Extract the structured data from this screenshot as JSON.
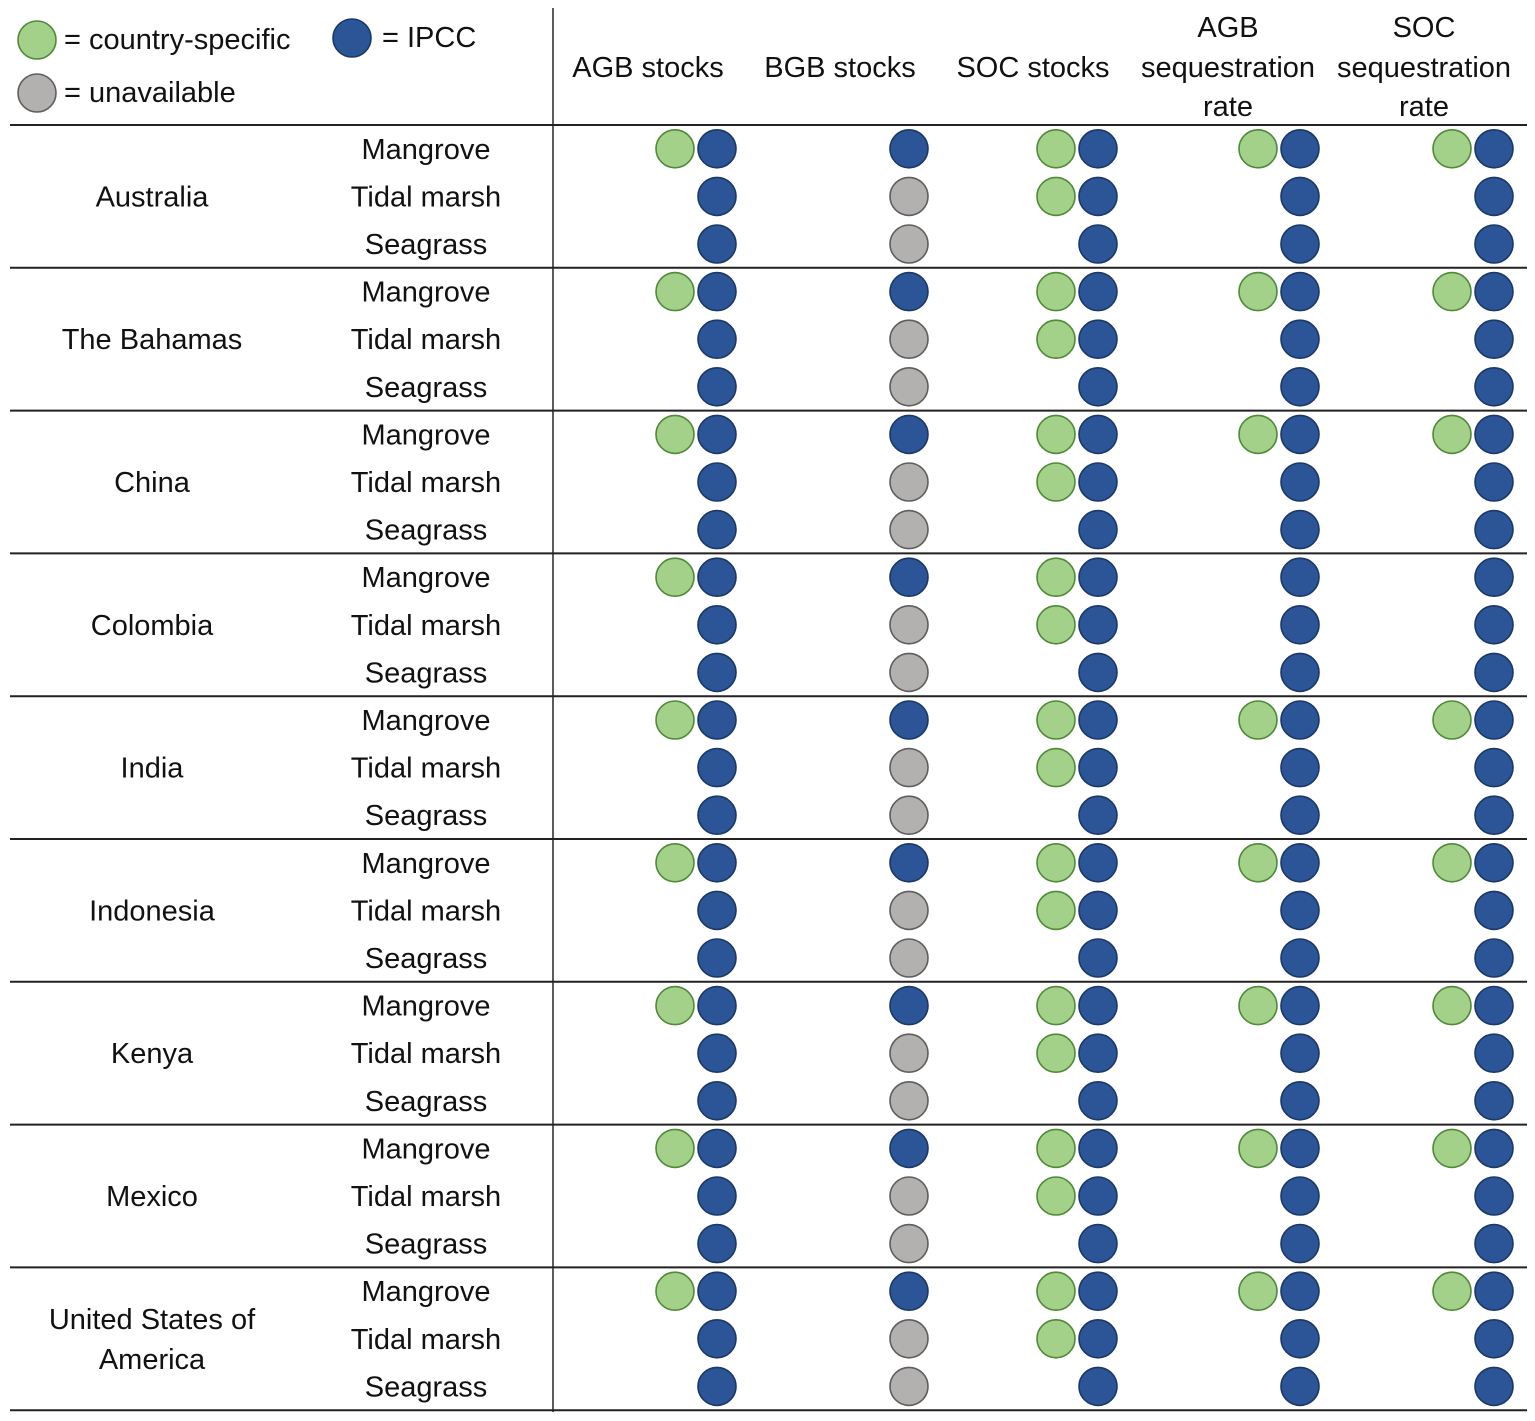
{
  "chart_data": {
    "type": "table",
    "legend": [
      {
        "key": "country",
        "label": "= country-specific",
        "color": "#a3d18a",
        "stroke": "#4f8a36"
      },
      {
        "key": "ipcc",
        "label": "= IPCC",
        "color": "#2b5597",
        "stroke": "#1b3866"
      },
      {
        "key": "unavailable",
        "label": "= unavailable",
        "color": "#b3b0b0",
        "stroke": "#5f5d5d"
      }
    ],
    "columns": [
      {
        "id": "agb_stocks",
        "lines": [
          "AGB stocks"
        ]
      },
      {
        "id": "bgb_stocks",
        "lines": [
          "BGB stocks"
        ]
      },
      {
        "id": "soc_stocks",
        "lines": [
          "SOC stocks"
        ]
      },
      {
        "id": "agb_seq",
        "lines": [
          "AGB",
          "sequestration",
          "rate"
        ]
      },
      {
        "id": "soc_seq",
        "lines": [
          "SOC",
          "sequestration",
          "rate"
        ]
      }
    ],
    "countries": [
      {
        "name": [
          "Australia"
        ],
        "rows": [
          {
            "ecosystem": "Mangrove",
            "values": [
              [
                "country",
                "ipcc"
              ],
              [
                "ipcc"
              ],
              [
                "country",
                "ipcc"
              ],
              [
                "country",
                "ipcc"
              ],
              [
                "country",
                "ipcc"
              ]
            ]
          },
          {
            "ecosystem": "Tidal marsh",
            "values": [
              [
                "ipcc"
              ],
              [
                "unavailable"
              ],
              [
                "country",
                "ipcc"
              ],
              [
                "ipcc"
              ],
              [
                "ipcc"
              ]
            ]
          },
          {
            "ecosystem": "Seagrass",
            "values": [
              [
                "ipcc"
              ],
              [
                "unavailable"
              ],
              [
                "ipcc"
              ],
              [
                "ipcc"
              ],
              [
                "ipcc"
              ]
            ]
          }
        ]
      },
      {
        "name": [
          "The Bahamas"
        ],
        "rows": [
          {
            "ecosystem": "Mangrove",
            "values": [
              [
                "country",
                "ipcc"
              ],
              [
                "ipcc"
              ],
              [
                "country",
                "ipcc"
              ],
              [
                "country",
                "ipcc"
              ],
              [
                "country",
                "ipcc"
              ]
            ]
          },
          {
            "ecosystem": "Tidal marsh",
            "values": [
              [
                "ipcc"
              ],
              [
                "unavailable"
              ],
              [
                "country",
                "ipcc"
              ],
              [
                "ipcc"
              ],
              [
                "ipcc"
              ]
            ]
          },
          {
            "ecosystem": "Seagrass",
            "values": [
              [
                "ipcc"
              ],
              [
                "unavailable"
              ],
              [
                "ipcc"
              ],
              [
                "ipcc"
              ],
              [
                "ipcc"
              ]
            ]
          }
        ]
      },
      {
        "name": [
          "China"
        ],
        "rows": [
          {
            "ecosystem": "Mangrove",
            "values": [
              [
                "country",
                "ipcc"
              ],
              [
                "ipcc"
              ],
              [
                "country",
                "ipcc"
              ],
              [
                "country",
                "ipcc"
              ],
              [
                "country",
                "ipcc"
              ]
            ]
          },
          {
            "ecosystem": "Tidal marsh",
            "values": [
              [
                "ipcc"
              ],
              [
                "unavailable"
              ],
              [
                "country",
                "ipcc"
              ],
              [
                "ipcc"
              ],
              [
                "ipcc"
              ]
            ]
          },
          {
            "ecosystem": "Seagrass",
            "values": [
              [
                "ipcc"
              ],
              [
                "unavailable"
              ],
              [
                "ipcc"
              ],
              [
                "ipcc"
              ],
              [
                "ipcc"
              ]
            ]
          }
        ]
      },
      {
        "name": [
          "Colombia"
        ],
        "rows": [
          {
            "ecosystem": "Mangrove",
            "values": [
              [
                "country",
                "ipcc"
              ],
              [
                "ipcc"
              ],
              [
                "country",
                "ipcc"
              ],
              [
                "ipcc"
              ],
              [
                "ipcc"
              ]
            ]
          },
          {
            "ecosystem": "Tidal marsh",
            "values": [
              [
                "ipcc"
              ],
              [
                "unavailable"
              ],
              [
                "country",
                "ipcc"
              ],
              [
                "ipcc"
              ],
              [
                "ipcc"
              ]
            ]
          },
          {
            "ecosystem": "Seagrass",
            "values": [
              [
                "ipcc"
              ],
              [
                "unavailable"
              ],
              [
                "ipcc"
              ],
              [
                "ipcc"
              ],
              [
                "ipcc"
              ]
            ]
          }
        ]
      },
      {
        "name": [
          "India"
        ],
        "rows": [
          {
            "ecosystem": "Mangrove",
            "values": [
              [
                "country",
                "ipcc"
              ],
              [
                "ipcc"
              ],
              [
                "country",
                "ipcc"
              ],
              [
                "country",
                "ipcc"
              ],
              [
                "country",
                "ipcc"
              ]
            ]
          },
          {
            "ecosystem": "Tidal marsh",
            "values": [
              [
                "ipcc"
              ],
              [
                "unavailable"
              ],
              [
                "country",
                "ipcc"
              ],
              [
                "ipcc"
              ],
              [
                "ipcc"
              ]
            ]
          },
          {
            "ecosystem": "Seagrass",
            "values": [
              [
                "ipcc"
              ],
              [
                "unavailable"
              ],
              [
                "ipcc"
              ],
              [
                "ipcc"
              ],
              [
                "ipcc"
              ]
            ]
          }
        ]
      },
      {
        "name": [
          "Indonesia"
        ],
        "rows": [
          {
            "ecosystem": "Mangrove",
            "values": [
              [
                "country",
                "ipcc"
              ],
              [
                "ipcc"
              ],
              [
                "country",
                "ipcc"
              ],
              [
                "country",
                "ipcc"
              ],
              [
                "country",
                "ipcc"
              ]
            ]
          },
          {
            "ecosystem": "Tidal marsh",
            "values": [
              [
                "ipcc"
              ],
              [
                "unavailable"
              ],
              [
                "country",
                "ipcc"
              ],
              [
                "ipcc"
              ],
              [
                "ipcc"
              ]
            ]
          },
          {
            "ecosystem": "Seagrass",
            "values": [
              [
                "ipcc"
              ],
              [
                "unavailable"
              ],
              [
                "ipcc"
              ],
              [
                "ipcc"
              ],
              [
                "ipcc"
              ]
            ]
          }
        ]
      },
      {
        "name": [
          "Kenya"
        ],
        "rows": [
          {
            "ecosystem": "Mangrove",
            "values": [
              [
                "country",
                "ipcc"
              ],
              [
                "ipcc"
              ],
              [
                "country",
                "ipcc"
              ],
              [
                "country",
                "ipcc"
              ],
              [
                "country",
                "ipcc"
              ]
            ]
          },
          {
            "ecosystem": "Tidal marsh",
            "values": [
              [
                "ipcc"
              ],
              [
                "unavailable"
              ],
              [
                "country",
                "ipcc"
              ],
              [
                "ipcc"
              ],
              [
                "ipcc"
              ]
            ]
          },
          {
            "ecosystem": "Seagrass",
            "values": [
              [
                "ipcc"
              ],
              [
                "unavailable"
              ],
              [
                "ipcc"
              ],
              [
                "ipcc"
              ],
              [
                "ipcc"
              ]
            ]
          }
        ]
      },
      {
        "name": [
          "Mexico"
        ],
        "rows": [
          {
            "ecosystem": "Mangrove",
            "values": [
              [
                "country",
                "ipcc"
              ],
              [
                "ipcc"
              ],
              [
                "country",
                "ipcc"
              ],
              [
                "country",
                "ipcc"
              ],
              [
                "country",
                "ipcc"
              ]
            ]
          },
          {
            "ecosystem": "Tidal marsh",
            "values": [
              [
                "ipcc"
              ],
              [
                "unavailable"
              ],
              [
                "country",
                "ipcc"
              ],
              [
                "ipcc"
              ],
              [
                "ipcc"
              ]
            ]
          },
          {
            "ecosystem": "Seagrass",
            "values": [
              [
                "ipcc"
              ],
              [
                "unavailable"
              ],
              [
                "ipcc"
              ],
              [
                "ipcc"
              ],
              [
                "ipcc"
              ]
            ]
          }
        ]
      },
      {
        "name": [
          "United States of",
          "America"
        ],
        "rows": [
          {
            "ecosystem": "Mangrove",
            "values": [
              [
                "country",
                "ipcc"
              ],
              [
                "ipcc"
              ],
              [
                "country",
                "ipcc"
              ],
              [
                "country",
                "ipcc"
              ],
              [
                "country",
                "ipcc"
              ]
            ]
          },
          {
            "ecosystem": "Tidal marsh",
            "values": [
              [
                "ipcc"
              ],
              [
                "unavailable"
              ],
              [
                "country",
                "ipcc"
              ],
              [
                "ipcc"
              ],
              [
                "ipcc"
              ]
            ]
          },
          {
            "ecosystem": "Seagrass",
            "values": [
              [
                "ipcc"
              ],
              [
                "unavailable"
              ],
              [
                "ipcc"
              ],
              [
                "ipcc"
              ],
              [
                "ipcc"
              ]
            ]
          }
        ]
      }
    ]
  }
}
